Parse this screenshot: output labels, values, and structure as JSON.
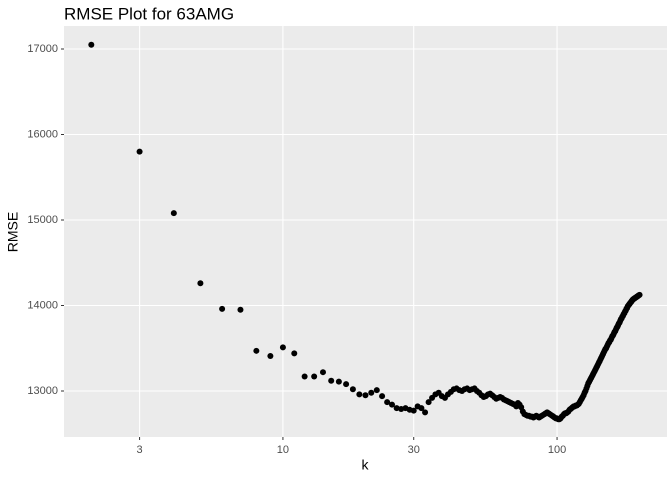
{
  "chart_data": {
    "type": "scatter",
    "title": "RMSE Plot for 63AMG",
    "x_label": "k",
    "y_label": "RMSE",
    "x": [
      2,
      3,
      4,
      5,
      6,
      7,
      8,
      9,
      10,
      11,
      12,
      13,
      14,
      15,
      16,
      17,
      18,
      19,
      20,
      21,
      22,
      23,
      24,
      25,
      26,
      27,
      28,
      29,
      30,
      31,
      32,
      33,
      34,
      35,
      36,
      37,
      38,
      39,
      40,
      41,
      42,
      43,
      44,
      45,
      46,
      47,
      48,
      49,
      50,
      51,
      52,
      53,
      54,
      55,
      56,
      57,
      58,
      59,
      60,
      61,
      62,
      63,
      64,
      65,
      66,
      67,
      68,
      69,
      70,
      71,
      72,
      73,
      74,
      75,
      76,
      77,
      78,
      79,
      80,
      81,
      82,
      83,
      84,
      85,
      86,
      87,
      88,
      89,
      90,
      91,
      92,
      93,
      94,
      95,
      96,
      97,
      98,
      99,
      100,
      101,
      102,
      103,
      104,
      105,
      106,
      107,
      108,
      109,
      110,
      111,
      112,
      113,
      114,
      115,
      116,
      117,
      118,
      119,
      120,
      121,
      122,
      123,
      124,
      125,
      126,
      127,
      128,
      129,
      130,
      131,
      132,
      133,
      134,
      135,
      136,
      137,
      138,
      139,
      140,
      141,
      142,
      143,
      144,
      145,
      146,
      147,
      148,
      149,
      150,
      151,
      152,
      153,
      154,
      155,
      156,
      157,
      158,
      159,
      160,
      161,
      162,
      163,
      164,
      165,
      166,
      167,
      168,
      169,
      170,
      171,
      172,
      173,
      174,
      175,
      176,
      177,
      178,
      179,
      180,
      181,
      182,
      183,
      184,
      185,
      186,
      187,
      188,
      189,
      190,
      191,
      192,
      193,
      194,
      195,
      196,
      197,
      198,
      199,
      200
    ],
    "values": [
      17050,
      15800,
      15080,
      14260,
      13960,
      13950,
      13470,
      13410,
      13510,
      13440,
      13170,
      13170,
      13220,
      13120,
      13110,
      13080,
      13020,
      12960,
      12950,
      12980,
      13010,
      12940,
      12870,
      12840,
      12800,
      12790,
      12800,
      12780,
      12770,
      12820,
      12800,
      12750,
      12870,
      12920,
      12960,
      12980,
      12940,
      12920,
      12960,
      12990,
      13020,
      13030,
      13010,
      13000,
      13020,
      13030,
      13010,
      13020,
      13030,
      13000,
      12980,
      12950,
      12930,
      12940,
      12960,
      12970,
      12950,
      12930,
      12910,
      12920,
      12930,
      12920,
      12900,
      12890,
      12880,
      12870,
      12860,
      12850,
      12840,
      12820,
      12860,
      12840,
      12810,
      12760,
      12730,
      12720,
      12710,
      12710,
      12700,
      12700,
      12690,
      12700,
      12710,
      12700,
      12690,
      12700,
      12710,
      12720,
      12730,
      12740,
      12750,
      12740,
      12730,
      12720,
      12710,
      12700,
      12690,
      12680,
      12680,
      12670,
      12670,
      12680,
      12700,
      12710,
      12730,
      12740,
      12740,
      12750,
      12760,
      12780,
      12790,
      12800,
      12810,
      12820,
      12820,
      12830,
      12830,
      12840,
      12850,
      12870,
      12890,
      12910,
      12930,
      12950,
      12980,
      13000,
      13030,
      13060,
      13090,
      13110,
      13130,
      13150,
      13170,
      13190,
      13210,
      13230,
      13250,
      13270,
      13290,
      13310,
      13330,
      13350,
      13370,
      13390,
      13410,
      13430,
      13450,
      13470,
      13490,
      13500,
      13520,
      13540,
      13560,
      13570,
      13590,
      13600,
      13620,
      13640,
      13650,
      13670,
      13690,
      13700,
      13720,
      13740,
      13750,
      13770,
      13790,
      13800,
      13820,
      13840,
      13850,
      13870,
      13880,
      13900,
      13910,
      13930,
      13940,
      13960,
      13970,
      13990,
      14000,
      14010,
      14020,
      14030,
      14040,
      14050,
      14060,
      14070,
      14075,
      14080,
      14085,
      14090,
      14095,
      14100,
      14105,
      14110,
      14115,
      14120,
      14125
    ],
    "color": "#000000",
    "xscale": "log",
    "xlim": [
      1.59,
      251.8
    ],
    "xticks": [
      3,
      10,
      30,
      100
    ],
    "ylim": [
      12462,
      17269
    ],
    "yticks": [
      13000,
      14000,
      15000,
      16000,
      17000
    ],
    "grid": true
  }
}
